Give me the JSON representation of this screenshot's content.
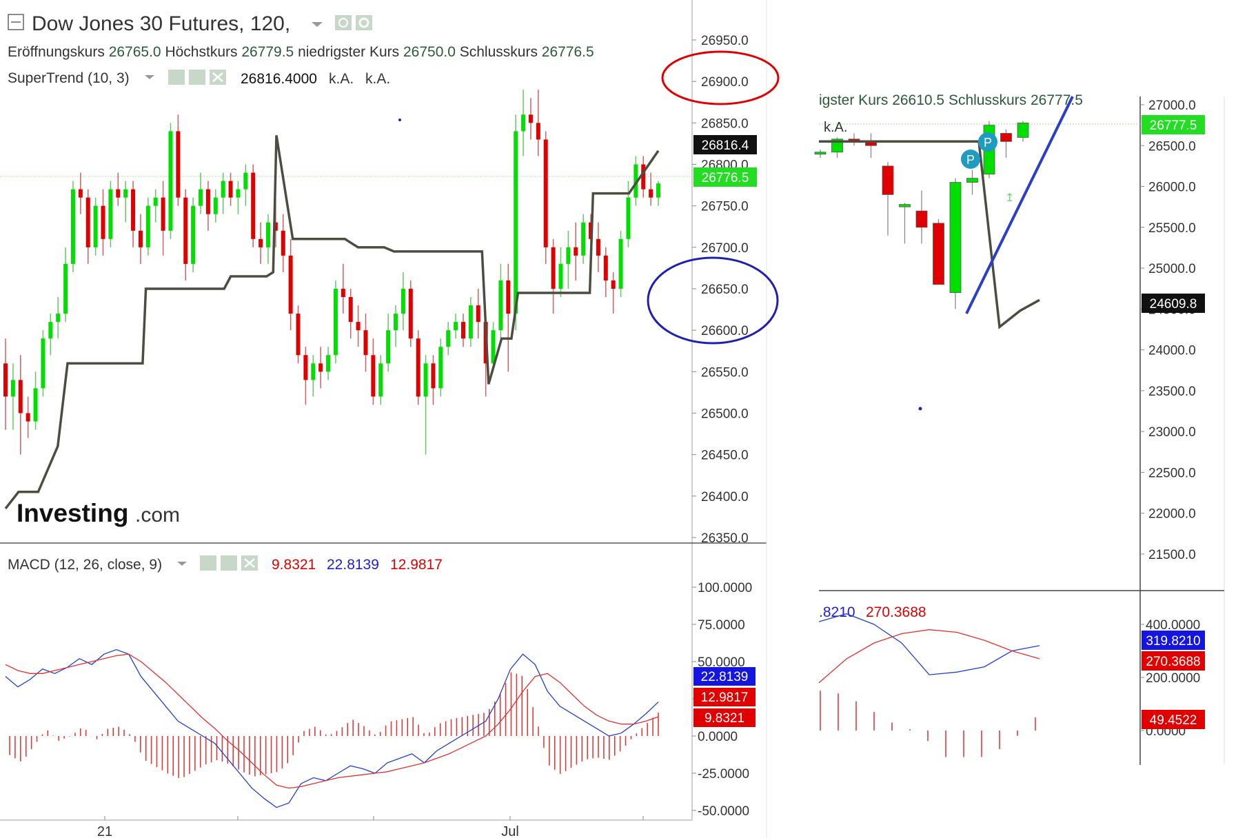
{
  "colors": {
    "up": "#00e000",
    "down": "#e00000",
    "supertrend": "#4a4d40",
    "macd_line": "#2040d0",
    "signal_line": "#e03030",
    "histogram": "#e03030",
    "last_price_bg": "#22dd22",
    "annotation_red": "#e00000",
    "annotation_blue": "#2020b0"
  },
  "left": {
    "header": {
      "title": "Dow Jones 30 Futures, 120,",
      "ohlc": [
        {
          "label": "Eröffnungskurs",
          "value": "26765.0"
        },
        {
          "label": "Höchstkurs",
          "value": "26779.5"
        },
        {
          "label": "niedrigster Kurs",
          "value": "26750.0"
        },
        {
          "label": "Schlusskurs",
          "value": "26776.5"
        }
      ],
      "supertrend_name": "SuperTrend (10, 3)",
      "supertrend_value": "26816.4000",
      "na1": "k.A.",
      "na2": "k.A."
    },
    "price_ticks": [
      "26950.0",
      "26900.0",
      "26850.0",
      "26800.0",
      "26750.0",
      "26700.0",
      "26650.0",
      "26600.0",
      "26550.0",
      "26500.0",
      "26450.0",
      "26400.0",
      "26350.0"
    ],
    "price_badges": {
      "supertrend": "26816.4",
      "last": "26776.5"
    },
    "logo_main": "Investing",
    "logo_suffix": ".com",
    "macd": {
      "name": "MACD (12, 26, close, 9)",
      "v1": "9.8321",
      "v2": "22.8139",
      "v3": "12.9817",
      "ticks": [
        "100.0000",
        "75.0000",
        "50.0000",
        "25.0000",
        "0.0000",
        "-25.0000",
        "-50.0000"
      ],
      "badges": [
        "22.8139",
        "12.9817",
        "9.8321"
      ]
    },
    "time_labels": [
      "21",
      "Jul"
    ]
  },
  "right": {
    "header_fragment": "igster Kurs 26610.5  Schlusskurs 26777.5",
    "na": "k.A.",
    "price_ticks": [
      "27000.0",
      "26500.0",
      "26000.0",
      "25500.0",
      "25000.0",
      "24500.0",
      "24000.0",
      "23500.0",
      "23000.0",
      "22500.0",
      "22000.0",
      "21500.0"
    ],
    "price_badges": {
      "last": "26777.5",
      "supertrend": "24609.8"
    },
    "pivot_label": "P",
    "macd": {
      "v1": ".8210",
      "v2": "270.3688",
      "ticks": [
        "400.0000",
        "200.0000",
        "0.0000"
      ],
      "badges": [
        "319.8210",
        "270.3688",
        "49.4522"
      ]
    }
  },
  "chart_data": [
    {
      "type": "candlestick",
      "title": "Dow Jones 30 Futures, 120,",
      "ylim": [
        26350,
        26975
      ],
      "x_ticks": [
        "21",
        "Jul"
      ],
      "series": [
        {
          "name": "SuperTrend (10, 3)",
          "values_last": 26816.4
        },
        {
          "name": "price",
          "last_close": 26776.5
        }
      ],
      "ohlc": [
        [
          26560,
          26590,
          26480,
          26520
        ],
        [
          26520,
          26560,
          26480,
          26540
        ],
        [
          26540,
          26570,
          26450,
          26500
        ],
        [
          26500,
          26520,
          26470,
          26490
        ],
        [
          26490,
          26550,
          26480,
          26530
        ],
        [
          26530,
          26600,
          26520,
          26590
        ],
        [
          26590,
          26620,
          26570,
          26610
        ],
        [
          26610,
          26640,
          26590,
          26620
        ],
        [
          26620,
          26700,
          26610,
          26680
        ],
        [
          26680,
          26780,
          26670,
          26770
        ],
        [
          26770,
          26790,
          26740,
          26760
        ],
        [
          26760,
          26770,
          26680,
          26700
        ],
        [
          26700,
          26760,
          26690,
          26750
        ],
        [
          26750,
          26770,
          26690,
          26710
        ],
        [
          26710,
          26780,
          26700,
          26770
        ],
        [
          26770,
          26790,
          26750,
          26760
        ],
        [
          26760,
          26780,
          26730,
          26770
        ],
        [
          26770,
          26780,
          26700,
          26720
        ],
        [
          26720,
          26740,
          26680,
          26700
        ],
        [
          26700,
          26760,
          26690,
          26750
        ],
        [
          26750,
          26770,
          26730,
          26760
        ],
        [
          26760,
          26780,
          26690,
          26720
        ],
        [
          26720,
          26850,
          26710,
          26840
        ],
        [
          26840,
          26860,
          26750,
          26760
        ],
        [
          26760,
          26770,
          26660,
          26680
        ],
        [
          26680,
          26760,
          26670,
          26750
        ],
        [
          26750,
          26790,
          26740,
          26770
        ],
        [
          26770,
          26780,
          26720,
          26740
        ],
        [
          26740,
          26770,
          26730,
          26760
        ],
        [
          26760,
          26790,
          26740,
          26780
        ],
        [
          26780,
          26790,
          26750,
          26760
        ],
        [
          26760,
          26780,
          26740,
          26770
        ],
        [
          26770,
          26800,
          26750,
          26790
        ],
        [
          26790,
          26800,
          26700,
          26710
        ],
        [
          26710,
          26730,
          26680,
          26700
        ],
        [
          26700,
          26740,
          26680,
          26730
        ],
        [
          26730,
          26760,
          26700,
          26720
        ],
        [
          26720,
          26740,
          26670,
          26690
        ],
        [
          26690,
          26710,
          26600,
          26620
        ],
        [
          26620,
          26630,
          26560,
          26570
        ],
        [
          26570,
          26580,
          26510,
          26540
        ],
        [
          26540,
          26570,
          26520,
          26560
        ],
        [
          26560,
          26580,
          26530,
          26550
        ],
        [
          26550,
          26580,
          26540,
          26570
        ],
        [
          26570,
          26660,
          26560,
          26650
        ],
        [
          26650,
          26680,
          26620,
          26640
        ],
        [
          26640,
          26650,
          26590,
          26610
        ],
        [
          26610,
          26630,
          26580,
          26600
        ],
        [
          26600,
          26620,
          26550,
          26570
        ],
        [
          26570,
          26590,
          26510,
          26520
        ],
        [
          26520,
          26570,
          26510,
          26560
        ],
        [
          26560,
          26620,
          26550,
          26600
        ],
        [
          26600,
          26630,
          26580,
          26620
        ],
        [
          26620,
          26670,
          26600,
          26650
        ],
        [
          26650,
          26660,
          26580,
          26590
        ],
        [
          26590,
          26600,
          26510,
          26520
        ],
        [
          26520,
          26570,
          26450,
          26560
        ],
        [
          26560,
          26570,
          26510,
          26530
        ],
        [
          26530,
          26590,
          26520,
          26580
        ],
        [
          26580,
          26610,
          26570,
          26600
        ],
        [
          26600,
          26620,
          26590,
          26610
        ],
        [
          26610,
          26620,
          26580,
          26590
        ],
        [
          26590,
          26640,
          26580,
          26630
        ],
        [
          26630,
          26650,
          26590,
          26610
        ],
        [
          26610,
          26620,
          26520,
          26560
        ],
        [
          26560,
          26610,
          26550,
          26600
        ],
        [
          26600,
          26680,
          26590,
          26660
        ],
        [
          26660,
          26680,
          26550,
          26620
        ],
        [
          26620,
          26860,
          26600,
          26840
        ],
        [
          26840,
          26890,
          26810,
          26860
        ],
        [
          26860,
          26880,
          26830,
          26850
        ],
        [
          26850,
          26890,
          26810,
          26830
        ],
        [
          26830,
          26840,
          26680,
          26700
        ],
        [
          26700,
          26710,
          26620,
          26650
        ],
        [
          26650,
          26700,
          26640,
          26680
        ],
        [
          26680,
          26720,
          26650,
          26700
        ],
        [
          26700,
          26730,
          26660,
          26690
        ],
        [
          26690,
          26740,
          26680,
          26730
        ],
        [
          26730,
          26740,
          26700,
          26710
        ],
        [
          26710,
          26730,
          26670,
          26690
        ],
        [
          26690,
          26700,
          26640,
          26660
        ],
        [
          26660,
          26670,
          26620,
          26650
        ],
        [
          26650,
          26720,
          26640,
          26710
        ],
        [
          26710,
          26780,
          26700,
          26760
        ],
        [
          26760,
          26810,
          26750,
          26800
        ],
        [
          26800,
          26810,
          26760,
          26770
        ],
        [
          26770,
          26790,
          26750,
          26760
        ],
        [
          26760,
          26780,
          26750,
          26777
        ]
      ]
    },
    {
      "type": "line",
      "title": "MACD (12, 26, close, 9)",
      "ylim": [
        -55,
        115
      ],
      "series": [
        {
          "name": "MACD",
          "last": 22.8139
        },
        {
          "name": "Signal",
          "last": 12.9817
        },
        {
          "name": "Histogram",
          "last": 9.8321
        }
      ]
    },
    {
      "type": "candlestick",
      "ylim": [
        21000,
        27300
      ],
      "ohlc": [
        [
          26400,
          26450,
          26350,
          26420
        ],
        [
          26420,
          26600,
          26350,
          26580
        ],
        [
          26580,
          26650,
          26500,
          26550
        ],
        [
          26550,
          26650,
          26350,
          26500
        ],
        [
          26250,
          26300,
          25400,
          25900
        ],
        [
          25750,
          25800,
          25300,
          25780
        ],
        [
          25700,
          25950,
          25300,
          25500
        ],
        [
          25550,
          25600,
          24800,
          24800
        ],
        [
          24700,
          26100,
          24500,
          26050
        ],
        [
          26050,
          26200,
          25900,
          26100
        ],
        [
          26150,
          26800,
          26100,
          26750
        ],
        [
          26650,
          26700,
          26350,
          26550
        ],
        [
          26600,
          26800,
          26550,
          26777
        ]
      ],
      "series": [
        {
          "name": "SuperTrend",
          "last": 24609.8
        },
        {
          "name": "price",
          "last_close": 26777.5
        }
      ]
    },
    {
      "type": "line",
      "ylim": [
        -100,
        460
      ],
      "series": [
        {
          "name": "MACD",
          "last": 319.821
        },
        {
          "name": "Signal",
          "last": 270.3688
        },
        {
          "name": "Histogram",
          "last": 49.4522
        }
      ]
    }
  ]
}
